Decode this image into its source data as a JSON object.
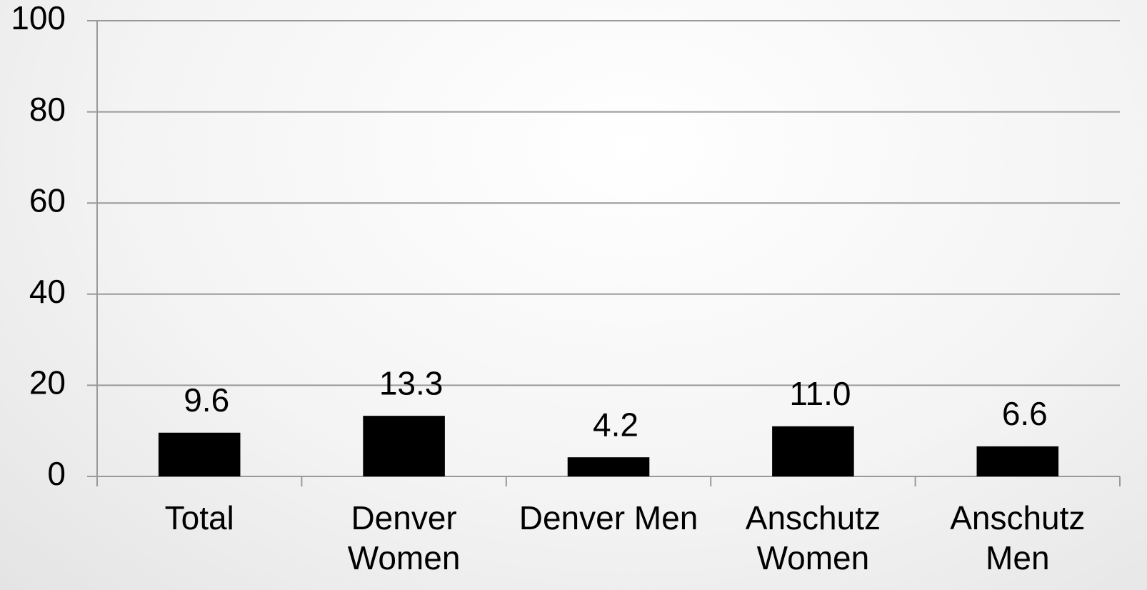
{
  "chart_data": {
    "type": "bar",
    "categories": [
      "Total",
      "Denver Women",
      "Denver Men",
      "Anschutz Women",
      "Anschutz Men"
    ],
    "values": [
      9.6,
      13.3,
      4.2,
      11.0,
      6.6
    ],
    "value_labels": [
      "9.6",
      "13.3",
      "4.2",
      "11.0",
      "6.6"
    ],
    "color": "#000000",
    "ylim": [
      0,
      100
    ],
    "yticks": [
      0,
      20,
      40,
      60,
      80,
      100
    ],
    "grid": true
  }
}
